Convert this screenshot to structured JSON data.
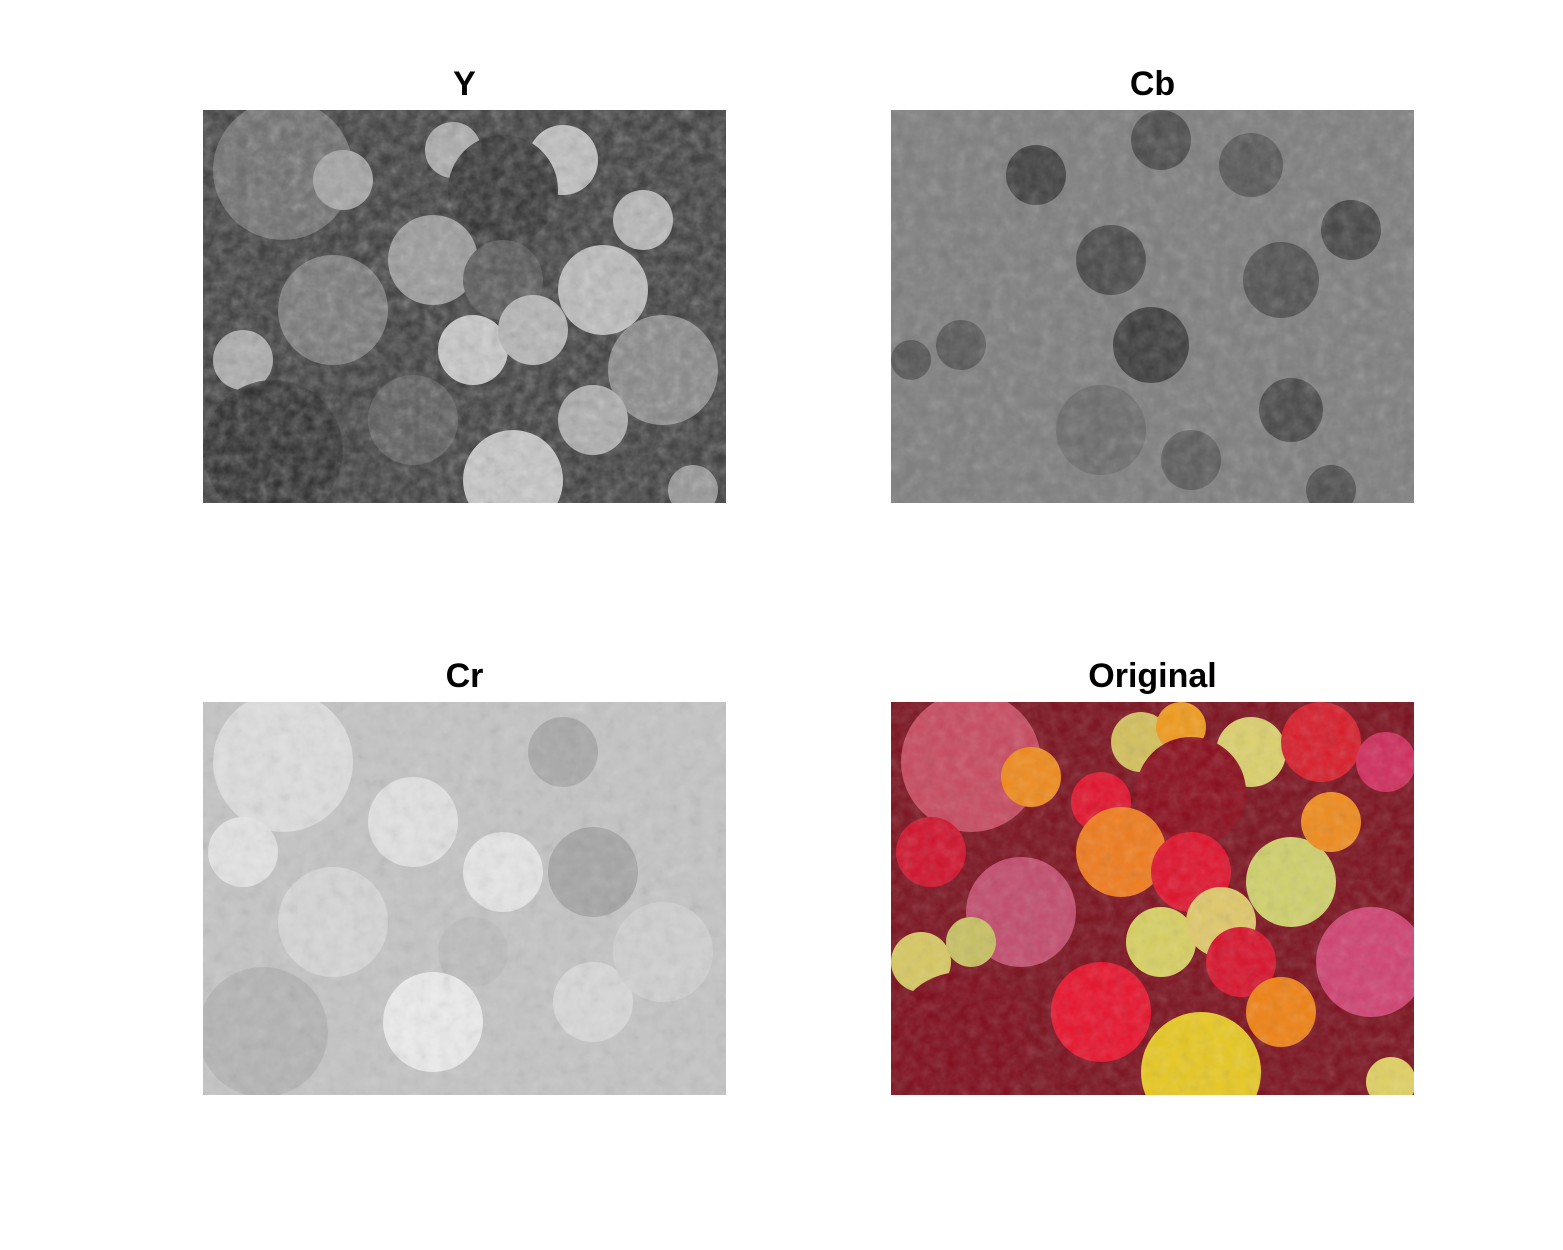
{
  "panels": {
    "y": {
      "title": "Y"
    },
    "cb": {
      "title": "Cb"
    },
    "cr": {
      "title": "Cr"
    },
    "original": {
      "title": "Original"
    }
  }
}
